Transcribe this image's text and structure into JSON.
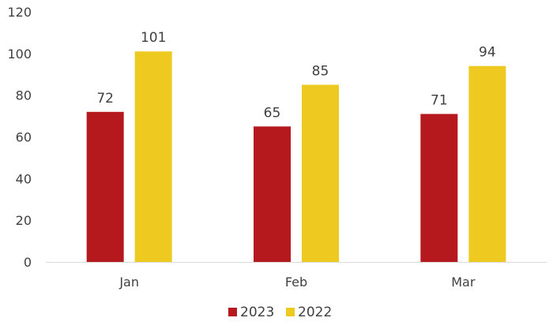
{
  "chart_data": {
    "type": "bar",
    "categories": [
      "Jan",
      "Feb",
      "Mar"
    ],
    "series": [
      {
        "name": "2023",
        "values": [
          72,
          65,
          71
        ],
        "color": "#b5191e"
      },
      {
        "name": "2022",
        "values": [
          101,
          85,
          94
        ],
        "color": "#eec920"
      }
    ],
    "title": "",
    "xlabel": "",
    "ylabel": "",
    "ylim": [
      0,
      120
    ],
    "yticks": [
      0,
      20,
      40,
      60,
      80,
      100,
      120
    ],
    "grid": false,
    "legend_position": "bottom",
    "data_labels": true
  }
}
